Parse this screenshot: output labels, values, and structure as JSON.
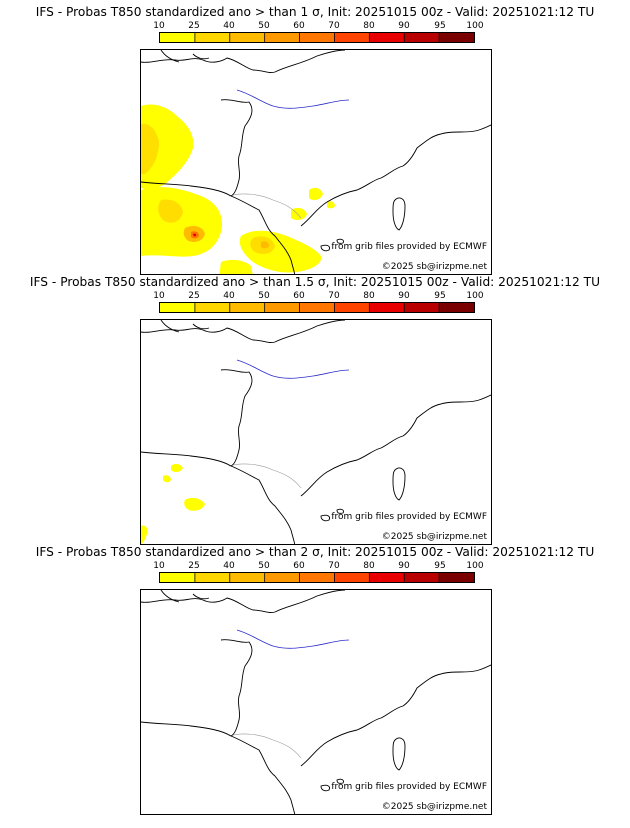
{
  "panels": [
    {
      "title": "IFS - Probas T850  standardized ano > than 1 σ, Init: 20251015 00z - Valid: 20251021:12 TU",
      "credit_source": "from grib files provided by ECMWF",
      "credit_copyright": "©2025 sb@irizpme.net"
    },
    {
      "title": "IFS - Probas T850  standardized ano > than 1.5 σ, Init: 20251015 00z - Valid: 20251021:12 TU",
      "credit_source": "from grib files provided by ECMWF",
      "credit_copyright": "©2025 sb@irizpme.net"
    },
    {
      "title": "IFS - Probas T850  standardized ano > than 2 σ, Init: 20251015 00z - Valid: 20251021:12 TU",
      "credit_source": "from grib files provided by ECMWF",
      "credit_copyright": "©2025 sb@irizpme.net"
    }
  ],
  "colorbar": {
    "ticks": [
      "10",
      "25",
      "40",
      "50",
      "60",
      "70",
      "80",
      "90",
      "95",
      "100"
    ],
    "colors": [
      "#ffff00",
      "#ffd700",
      "#ffbb00",
      "#ff9900",
      "#ff7700",
      "#ff4400",
      "#e80000",
      "#b80000",
      "#7a0000"
    ]
  },
  "colors": {
    "coastline": "#000000",
    "rivers": "#2d2dcc",
    "borders": "#9a9a9a"
  }
}
